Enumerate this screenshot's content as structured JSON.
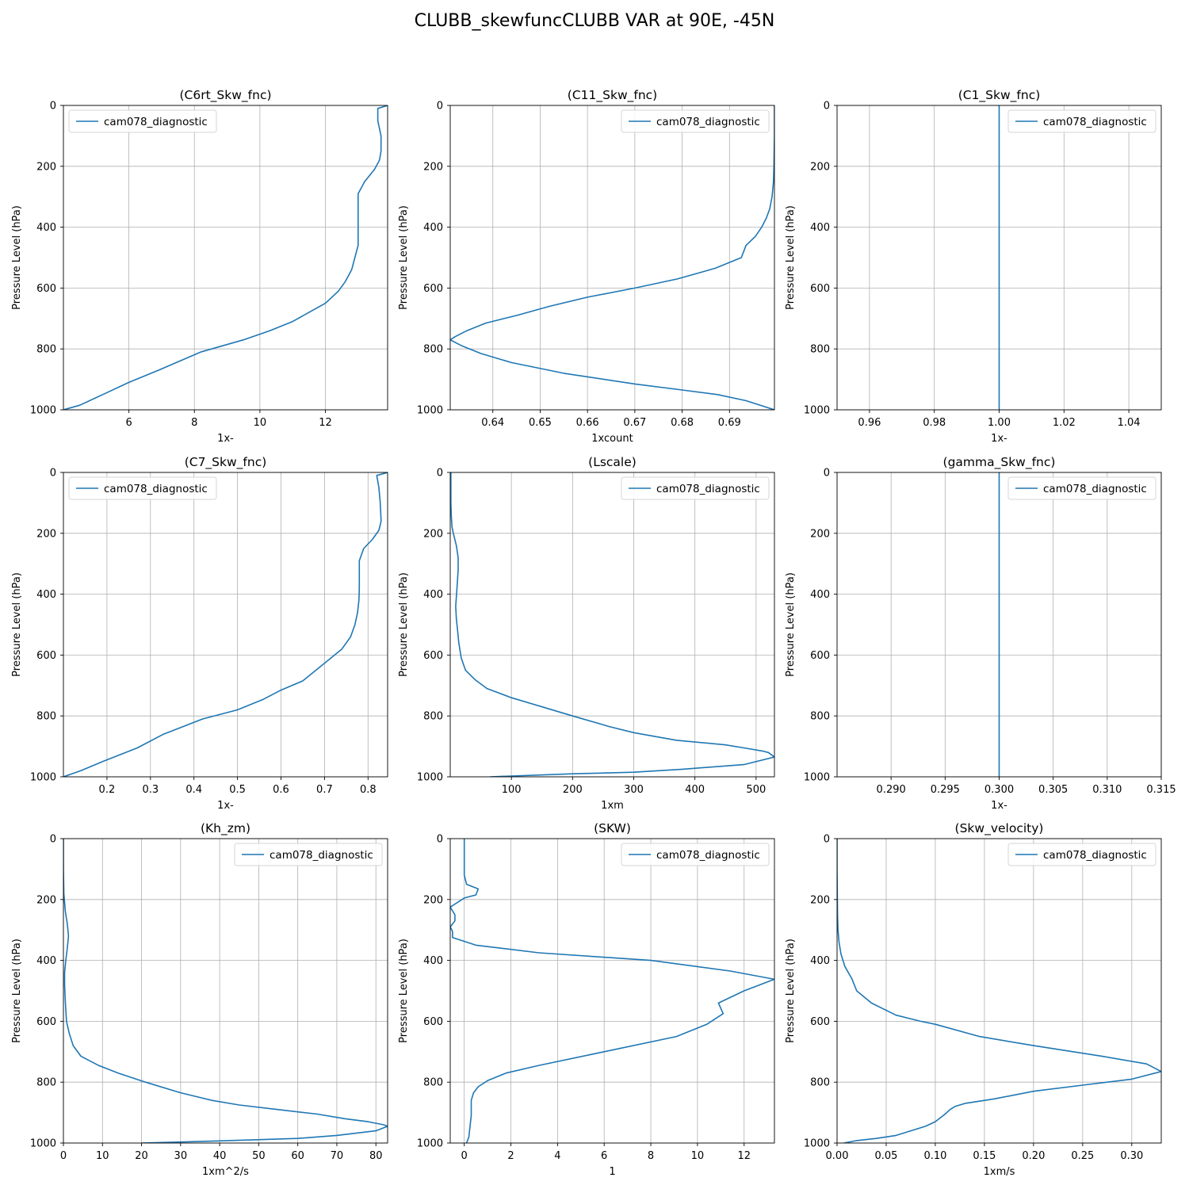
{
  "figure": {
    "title": "CLUBB_skewfuncCLUBB VAR at 90E, -45N"
  },
  "colors": {
    "line": "#1f77b4",
    "grid": "#b0b0b0",
    "axis": "#000000"
  },
  "chart_data": [
    {
      "type": "line",
      "title": "(C6rt_Skw_fnc)",
      "xlabel": "1x-",
      "ylabel": "Pressure Level (hPa)",
      "xlim": [
        4.0,
        13.9
      ],
      "ylim": [
        1000,
        0
      ],
      "xticks": [
        6,
        8,
        10,
        12
      ],
      "xtick_labels": [
        "6",
        "8",
        "10",
        "12"
      ],
      "yticks": [
        0,
        200,
        400,
        600,
        800,
        1000
      ],
      "grid": true,
      "legend": {
        "location": "upper left",
        "entries": [
          "cam078_diagnostic"
        ]
      },
      "series": [
        {
          "name": "cam078_diagnostic",
          "x": [
            13.9,
            13.6,
            13.6,
            13.7,
            13.7,
            13.65,
            13.5,
            13.2,
            13.0,
            13.0,
            13.0,
            13.0,
            13.0,
            12.9,
            12.8,
            12.6,
            12.4,
            12.0,
            11.5,
            11.0,
            10.3,
            9.5,
            8.2,
            6.9,
            6.0,
            5.2,
            4.5,
            4.0
          ],
          "y": [
            0,
            10,
            50,
            100,
            150,
            180,
            210,
            250,
            290,
            330,
            380,
            420,
            460,
            500,
            540,
            580,
            610,
            650,
            680,
            710,
            740,
            770,
            810,
            870,
            910,
            950,
            985,
            1000
          ]
        }
      ]
    },
    {
      "type": "line",
      "title": "(C11_Skw_fnc)",
      "xlabel": "1xcount",
      "ylabel": "Pressure Level (hPa)",
      "xlim": [
        0.631,
        0.6995
      ],
      "ylim": [
        1000,
        0
      ],
      "xticks": [
        0.64,
        0.65,
        0.66,
        0.67,
        0.68,
        0.69
      ],
      "xtick_labels": [
        "0.64",
        "0.65",
        "0.66",
        "0.67",
        "0.68",
        "0.69"
      ],
      "yticks": [
        0,
        200,
        400,
        600,
        800,
        1000
      ],
      "grid": true,
      "legend": {
        "location": "upper right",
        "entries": [
          "cam078_diagnostic"
        ]
      },
      "series": [
        {
          "name": "cam078_diagnostic",
          "x": [
            0.6995,
            0.6995,
            0.6994,
            0.6993,
            0.699,
            0.6985,
            0.6978,
            0.6968,
            0.6955,
            0.6935,
            0.6925,
            0.687,
            0.679,
            0.67,
            0.66,
            0.652,
            0.645,
            0.6385,
            0.6345,
            0.632,
            0.631,
            0.6335,
            0.6375,
            0.644,
            0.655,
            0.67,
            0.68,
            0.6875,
            0.6935,
            0.6995
          ],
          "y": [
            0,
            100,
            200,
            250,
            300,
            340,
            370,
            400,
            430,
            460,
            500,
            535,
            570,
            600,
            630,
            660,
            690,
            715,
            740,
            760,
            770,
            790,
            815,
            845,
            880,
            915,
            935,
            950,
            970,
            1000
          ]
        }
      ]
    },
    {
      "type": "line",
      "title": "(C1_Skw_fnc)",
      "xlabel": "1x-",
      "ylabel": "Pressure Level (hPa)",
      "xlim": [
        0.95,
        1.05
      ],
      "ylim": [
        1000,
        0
      ],
      "xticks": [
        0.96,
        0.98,
        1.0,
        1.02,
        1.04
      ],
      "xtick_labels": [
        "0.96",
        "0.98",
        "1.00",
        "1.02",
        "1.04"
      ],
      "yticks": [
        0,
        200,
        400,
        600,
        800,
        1000
      ],
      "grid": true,
      "legend": {
        "location": "upper right",
        "entries": [
          "cam078_diagnostic"
        ]
      },
      "series": [
        {
          "name": "cam078_diagnostic",
          "x": [
            1.0,
            1.0
          ],
          "y": [
            0,
            1000
          ]
        }
      ]
    },
    {
      "type": "line",
      "title": "(C7_Skw_fnc)",
      "xlabel": "1x-",
      "ylabel": "Pressure Level (hPa)",
      "xlim": [
        0.1,
        0.845
      ],
      "ylim": [
        1000,
        0
      ],
      "xticks": [
        0.2,
        0.3,
        0.4,
        0.5,
        0.6,
        0.7,
        0.8
      ],
      "xtick_labels": [
        "0.2",
        "0.3",
        "0.4",
        "0.5",
        "0.6",
        "0.7",
        "0.8"
      ],
      "yticks": [
        0,
        200,
        400,
        600,
        800,
        1000
      ],
      "grid": true,
      "legend": {
        "location": "upper left",
        "entries": [
          "cam078_diagnostic"
        ]
      },
      "series": [
        {
          "name": "cam078_diagnostic",
          "x": [
            0.845,
            0.82,
            0.825,
            0.828,
            0.83,
            0.825,
            0.81,
            0.79,
            0.78,
            0.78,
            0.78,
            0.779,
            0.776,
            0.77,
            0.76,
            0.74,
            0.71,
            0.68,
            0.65,
            0.6,
            0.56,
            0.5,
            0.42,
            0.33,
            0.27,
            0.19,
            0.14,
            0.1
          ],
          "y": [
            0,
            10,
            50,
            100,
            160,
            190,
            220,
            250,
            290,
            320,
            380,
            420,
            460,
            500,
            540,
            580,
            615,
            650,
            685,
            715,
            745,
            780,
            810,
            860,
            905,
            950,
            980,
            1000
          ]
        }
      ]
    },
    {
      "type": "line",
      "title": "(Lscale)",
      "xlabel": "1xm",
      "ylabel": "Pressure Level (hPa)",
      "xlim": [
        0,
        530
      ],
      "ylim": [
        1000,
        0
      ],
      "xticks": [
        100,
        200,
        300,
        400,
        500
      ],
      "xtick_labels": [
        "100",
        "200",
        "300",
        "400",
        "500"
      ],
      "yticks": [
        0,
        200,
        400,
        600,
        800,
        1000
      ],
      "grid": true,
      "legend": {
        "location": "upper right",
        "entries": [
          "cam078_diagnostic"
        ]
      },
      "series": [
        {
          "name": "cam078_diagnostic",
          "x": [
            1,
            1,
            2,
            3,
            5,
            10,
            13,
            13,
            11,
            9,
            10,
            12,
            14,
            18,
            25,
            40,
            60,
            100,
            150,
            200,
            260,
            300,
            370,
            450,
            480,
            510,
            520,
            530,
            480,
            380,
            300,
            200,
            65
          ],
          "y": [
            0,
            100,
            150,
            180,
            200,
            240,
            280,
            320,
            380,
            440,
            480,
            520,
            560,
            610,
            650,
            680,
            710,
            740,
            770,
            800,
            835,
            855,
            880,
            895,
            905,
            915,
            920,
            935,
            960,
            975,
            985,
            990,
            1000
          ]
        }
      ]
    },
    {
      "type": "line",
      "title": "(gamma_Skw_fnc)",
      "xlabel": "1x-",
      "ylabel": "Pressure Level (hPa)",
      "xlim": [
        0.285,
        0.315
      ],
      "ylim": [
        1000,
        0
      ],
      "xticks": [
        0.29,
        0.295,
        0.3,
        0.305,
        0.31,
        0.315
      ],
      "xtick_labels": [
        "0.290",
        "0.295",
        "0.300",
        "0.305",
        "0.310",
        "0.315"
      ],
      "yticks": [
        0,
        200,
        400,
        600,
        800,
        1000
      ],
      "grid": true,
      "legend": {
        "location": "upper right",
        "entries": [
          "cam078_diagnostic"
        ]
      },
      "series": [
        {
          "name": "cam078_diagnostic",
          "x": [
            0.3,
            0.3
          ],
          "y": [
            0,
            1000
          ]
        }
      ]
    },
    {
      "type": "line",
      "title": "(Kh_zm)",
      "xlabel": "1xm^2/s",
      "ylabel": "Pressure Level (hPa)",
      "xlim": [
        0,
        83
      ],
      "ylim": [
        1000,
        0
      ],
      "xticks": [
        0,
        10,
        20,
        30,
        40,
        50,
        60,
        70,
        80
      ],
      "xtick_labels": [
        "0",
        "10",
        "20",
        "30",
        "40",
        "50",
        "60",
        "70",
        "80"
      ],
      "yticks": [
        0,
        200,
        400,
        600,
        800,
        1000
      ],
      "grid": true,
      "legend": {
        "location": "upper right",
        "entries": [
          "cam078_diagnostic"
        ]
      },
      "series": [
        {
          "name": "cam078_diagnostic",
          "x": [
            0,
            0,
            0.1,
            0.5,
            1.0,
            1.3,
            1.0,
            0.6,
            0.3,
            0.3,
            0.5,
            0.8,
            1.5,
            2.5,
            4.5,
            9,
            14,
            21,
            30,
            38,
            45,
            55,
            65,
            72,
            78,
            82,
            83,
            80,
            70,
            60,
            40,
            20
          ],
          "y": [
            0,
            100,
            180,
            240,
            280,
            320,
            360,
            400,
            440,
            480,
            540,
            600,
            640,
            680,
            715,
            745,
            770,
            800,
            835,
            860,
            875,
            890,
            905,
            920,
            930,
            940,
            945,
            960,
            975,
            985,
            993,
            1000
          ]
        }
      ]
    },
    {
      "type": "line",
      "title": "(SKW)",
      "xlabel": "1",
      "ylabel": "Pressure Level (hPa)",
      "xlim": [
        -0.6,
        13.3
      ],
      "ylim": [
        1000,
        0
      ],
      "xticks": [
        0,
        2,
        4,
        6,
        8,
        10,
        12
      ],
      "xtick_labels": [
        "0",
        "2",
        "4",
        "6",
        "8",
        "10",
        "12"
      ],
      "yticks": [
        0,
        200,
        400,
        600,
        800,
        1000
      ],
      "grid": true,
      "legend": {
        "location": "upper right",
        "entries": [
          "cam078_diagnostic"
        ]
      },
      "series": [
        {
          "name": "cam078_diagnostic",
          "x": [
            0,
            0,
            0,
            0.1,
            0.6,
            0.5,
            0,
            -0.6,
            -0.4,
            -0.4,
            -0.6,
            -0.5,
            -0.5,
            0.5,
            3.2,
            8.0,
            11.4,
            13.3,
            12.0,
            10.9,
            11.1,
            10.4,
            9.1,
            6.0,
            3.2,
            1.8,
            1.0,
            0.6,
            0.4,
            0.3,
            0.3,
            0.2,
            0.1
          ],
          "y": [
            0,
            60,
            120,
            150,
            165,
            185,
            195,
            225,
            250,
            270,
            290,
            305,
            325,
            350,
            375,
            400,
            435,
            462,
            500,
            540,
            575,
            610,
            650,
            700,
            745,
            770,
            795,
            815,
            835,
            860,
            910,
            980,
            1000
          ]
        }
      ]
    },
    {
      "type": "line",
      "title": "(Skw_velocity)",
      "xlabel": "1xm/s",
      "ylabel": "Pressure Level (hPa)",
      "xlim": [
        0,
        0.33
      ],
      "ylim": [
        1000,
        0
      ],
      "xticks": [
        0,
        0.05,
        0.1,
        0.15,
        0.2,
        0.25,
        0.3
      ],
      "xtick_labels": [
        "0.00",
        "0.05",
        "0.10",
        "0.15",
        "0.20",
        "0.25",
        "0.30"
      ],
      "yticks": [
        0,
        200,
        400,
        600,
        800,
        1000
      ],
      "grid": true,
      "legend": {
        "location": "upper right",
        "entries": [
          "cam078_diagnostic"
        ]
      },
      "series": [
        {
          "name": "cam078_diagnostic",
          "x": [
            0.0,
            0.0,
            0.0005,
            0.001,
            0.002,
            0.004,
            0.008,
            0.015,
            0.02,
            0.035,
            0.06,
            0.085,
            0.1,
            0.145,
            0.2,
            0.27,
            0.315,
            0.33,
            0.3,
            0.25,
            0.2,
            0.16,
            0.13,
            0.12,
            0.115,
            0.11,
            0.1,
            0.09,
            0.075,
            0.06,
            0.04,
            0.02,
            0.007
          ],
          "y": [
            0,
            100,
            250,
            300,
            340,
            380,
            420,
            460,
            500,
            540,
            580,
            600,
            610,
            650,
            680,
            715,
            740,
            765,
            790,
            810,
            830,
            855,
            870,
            880,
            890,
            905,
            930,
            945,
            960,
            975,
            985,
            992,
            1000
          ]
        }
      ]
    }
  ]
}
